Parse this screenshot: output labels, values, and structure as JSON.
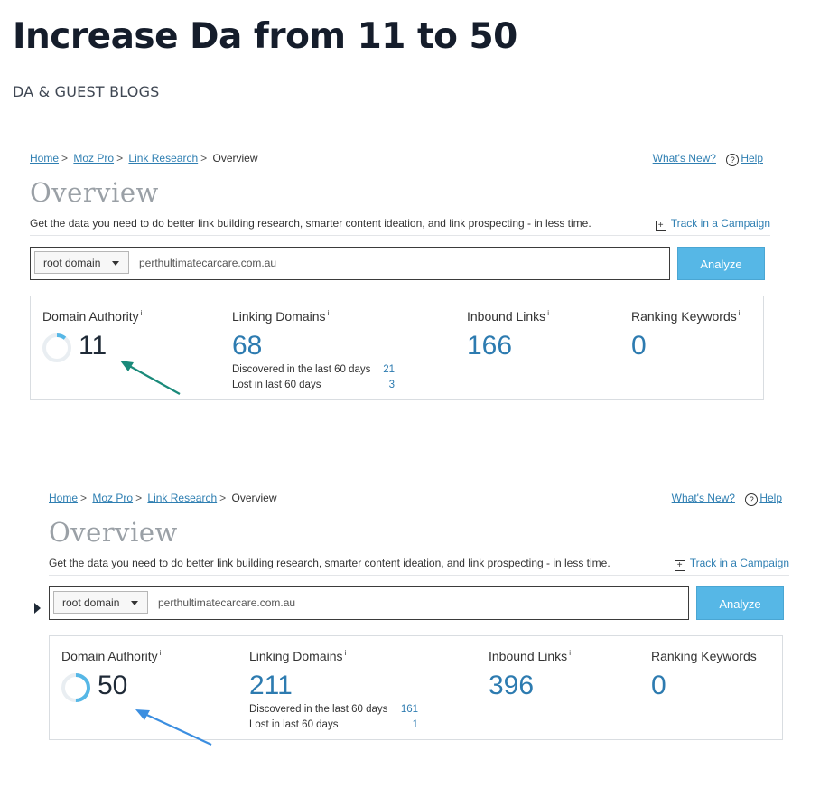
{
  "post": {
    "title": "Increase Da from 11 to 50",
    "category": "DA & GUEST BLOGS"
  },
  "panels": [
    {
      "breadcrumb": [
        "Home",
        "Moz Pro",
        "Link Research",
        "Overview"
      ],
      "whats_new": "What's New?",
      "help": "Help",
      "title": "Overview",
      "description": "Get the data you need to do better link building research, smarter content ideation, and link prospecting - in less time.",
      "track": "Track in a Campaign",
      "select_value": "root domain",
      "search_value": "perthultimatecarcare.com.au",
      "analyze_label": "Analyze",
      "metrics": {
        "da_label": "Domain Authority",
        "da_value": "11",
        "da_fraction": 0.11,
        "ld_label": "Linking Domains",
        "ld_value": "68",
        "discovered_label": "Discovered in the last 60 days",
        "discovered_value": "21",
        "lost_label": "Lost in last 60 days",
        "lost_value": "3",
        "il_label": "Inbound Links",
        "il_value": "166",
        "rk_label": "Ranking Keywords",
        "rk_value": "0",
        "info_mark": "i"
      },
      "arrow_color": "#1a8a7a"
    },
    {
      "breadcrumb": [
        "Home",
        "Moz Pro",
        "Link Research",
        "Overview"
      ],
      "whats_new": "What's New?",
      "help": "Help",
      "title": "Overview",
      "description": "Get the data you need to do better link building research, smarter content ideation, and link prospecting - in less time.",
      "track": "Track in a Campaign",
      "select_value": "root domain",
      "search_value": "perthultimatecarcare.com.au",
      "analyze_label": "Analyze",
      "metrics": {
        "da_label": "Domain Authority",
        "da_value": "50",
        "da_fraction": 0.5,
        "ld_label": "Linking Domains",
        "ld_value": "211",
        "discovered_label": "Discovered in the last 60 days",
        "discovered_value": "161",
        "lost_label": "Lost in last 60 days",
        "lost_value": "1",
        "il_label": "Inbound Links",
        "il_value": "396",
        "rk_label": "Ranking Keywords",
        "rk_value": "0",
        "info_mark": "i"
      },
      "arrow_color": "#3b8ee0"
    }
  ]
}
